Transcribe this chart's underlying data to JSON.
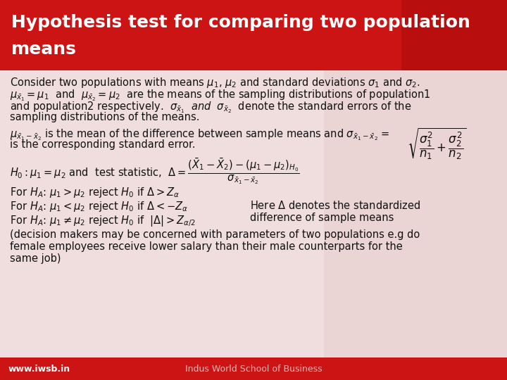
{
  "title_line1": "Hypothesis test for comparing two population",
  "title_line2": "means",
  "title_bg_color": "#cc1414",
  "title_text_color": "#ffffff",
  "body_bg_color": "#f0dede",
  "body_text_color": "#111111",
  "footer_bg_color": "#cc1414",
  "footer_text_color": "#ffffff",
  "footer_left": "www.iwsb.in",
  "footer_center": "Indus World School of Business",
  "title_fontsize": 18,
  "body_fontsize": 10.5
}
